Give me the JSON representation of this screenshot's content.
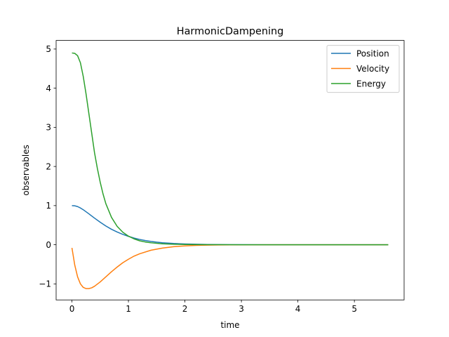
{
  "chart_data": {
    "type": "line",
    "title": "HarmonicDampening",
    "xlabel": "time",
    "ylabel": "observables",
    "xlim": [
      -0.28,
      5.88
    ],
    "ylim": [
      -1.41,
      5.22
    ],
    "xticks": [
      0,
      1,
      2,
      3,
      4,
      5
    ],
    "yticks": [
      -1,
      0,
      1,
      2,
      3,
      4,
      5
    ],
    "xtick_labels": [
      "0",
      "1",
      "2",
      "3",
      "4",
      "5"
    ],
    "ytick_labels": [
      "−1",
      "0",
      "1",
      "2",
      "3",
      "4",
      "5"
    ],
    "grid": false,
    "legend_position": "top-right",
    "series": [
      {
        "name": "Position",
        "color": "#1f77b4",
        "x": [
          0,
          0.05,
          0.1,
          0.15,
          0.2,
          0.3,
          0.4,
          0.5,
          0.6,
          0.7,
          0.8,
          0.9,
          1.0,
          1.1,
          1.2,
          1.3,
          1.4,
          1.5,
          1.6,
          1.8,
          2.0,
          2.2,
          2.4,
          2.6,
          2.8,
          3.0,
          3.5,
          4.0,
          4.5,
          5.0,
          5.6
        ],
        "y": [
          1.0,
          0.995,
          0.975,
          0.94,
          0.895,
          0.79,
          0.68,
          0.575,
          0.48,
          0.395,
          0.325,
          0.265,
          0.215,
          0.17,
          0.135,
          0.108,
          0.085,
          0.066,
          0.052,
          0.032,
          0.02,
          0.012,
          0.007,
          0.004,
          0.002,
          0.001,
          0.0,
          0.0,
          0.0,
          0.0,
          0.0
        ]
      },
      {
        "name": "Velocity",
        "color": "#ff7f0e",
        "x": [
          0,
          0.05,
          0.1,
          0.15,
          0.2,
          0.25,
          0.3,
          0.35,
          0.4,
          0.5,
          0.6,
          0.7,
          0.8,
          0.9,
          1.0,
          1.1,
          1.2,
          1.4,
          1.6,
          1.8,
          2.0,
          2.2,
          2.4,
          2.6,
          2.8,
          3.0,
          3.5,
          4.0,
          4.5,
          5.0,
          5.6
        ],
        "y": [
          -0.08,
          -0.52,
          -0.82,
          -1.0,
          -1.09,
          -1.12,
          -1.12,
          -1.1,
          -1.06,
          -0.95,
          -0.82,
          -0.69,
          -0.57,
          -0.46,
          -0.37,
          -0.29,
          -0.23,
          -0.14,
          -0.085,
          -0.05,
          -0.03,
          -0.017,
          -0.01,
          -0.006,
          -0.003,
          -0.002,
          0.0,
          0.0,
          0.0,
          0.0,
          0.0
        ]
      },
      {
        "name": "Energy",
        "color": "#2ca02c",
        "x": [
          0,
          0.05,
          0.1,
          0.15,
          0.2,
          0.25,
          0.3,
          0.35,
          0.4,
          0.45,
          0.5,
          0.55,
          0.6,
          0.7,
          0.8,
          0.9,
          1.0,
          1.1,
          1.2,
          1.3,
          1.4,
          1.6,
          1.8,
          2.0,
          2.2,
          2.4,
          2.6,
          3.0,
          3.5,
          4.0,
          5.0,
          5.6
        ],
        "y": [
          4.9,
          4.89,
          4.83,
          4.65,
          4.3,
          3.85,
          3.35,
          2.85,
          2.35,
          1.95,
          1.6,
          1.3,
          1.05,
          0.7,
          0.47,
          0.32,
          0.22,
          0.15,
          0.1,
          0.07,
          0.05,
          0.025,
          0.013,
          0.007,
          0.004,
          0.002,
          0.001,
          0.0,
          0.0,
          0.0,
          0.0,
          0.0
        ]
      }
    ]
  }
}
